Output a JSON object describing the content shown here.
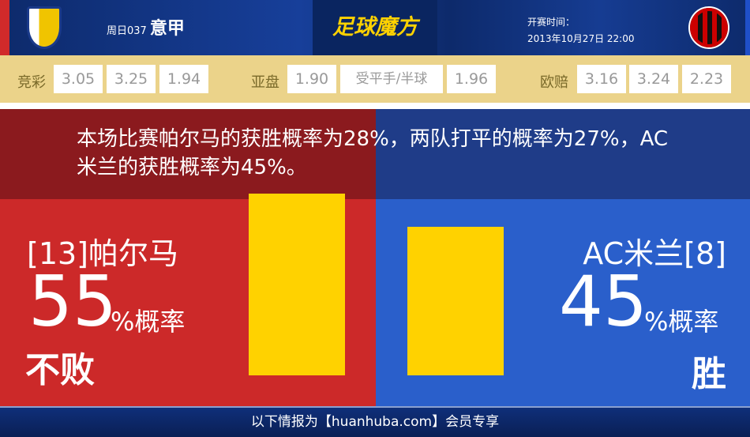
{
  "header": {
    "home_logo": "parma-fc-crest",
    "away_logo": "ac-milan-crest",
    "match_no": "周日037",
    "league": "意甲",
    "brand": "足球魔方",
    "time_label": "开赛时间：",
    "time_value": "2013年10月27日 22:00"
  },
  "odds": {
    "jingcai": {
      "label": "竞彩",
      "values": [
        "3.05",
        "3.25",
        "1.94"
      ]
    },
    "asian": {
      "label": "亚盘",
      "home": "1.90",
      "handicap": "受平手/半球",
      "away": "1.96"
    },
    "euro": {
      "label": "欧赔",
      "values": [
        "3.16",
        "3.24",
        "2.23"
      ]
    }
  },
  "summary": "本场比赛帕尔马的获胜概率为28%，两队打平的概率为27%，AC米兰的获胜概率为45%。",
  "home": {
    "name": "[13]帕尔马",
    "percent": "55",
    "unit": "%概率",
    "outcome": "不败",
    "bar_value": 55
  },
  "away": {
    "name": "AC米兰[8]",
    "percent": "45",
    "unit": "%概率",
    "outcome": "胜",
    "bar_value": 45
  },
  "footer": "以下情报为【huanhuba.com】会员专享",
  "colors": {
    "home": "#cc2929",
    "away": "#2a5fcb",
    "bar": "#ffd200",
    "odds_bg": "#ebd38a"
  }
}
